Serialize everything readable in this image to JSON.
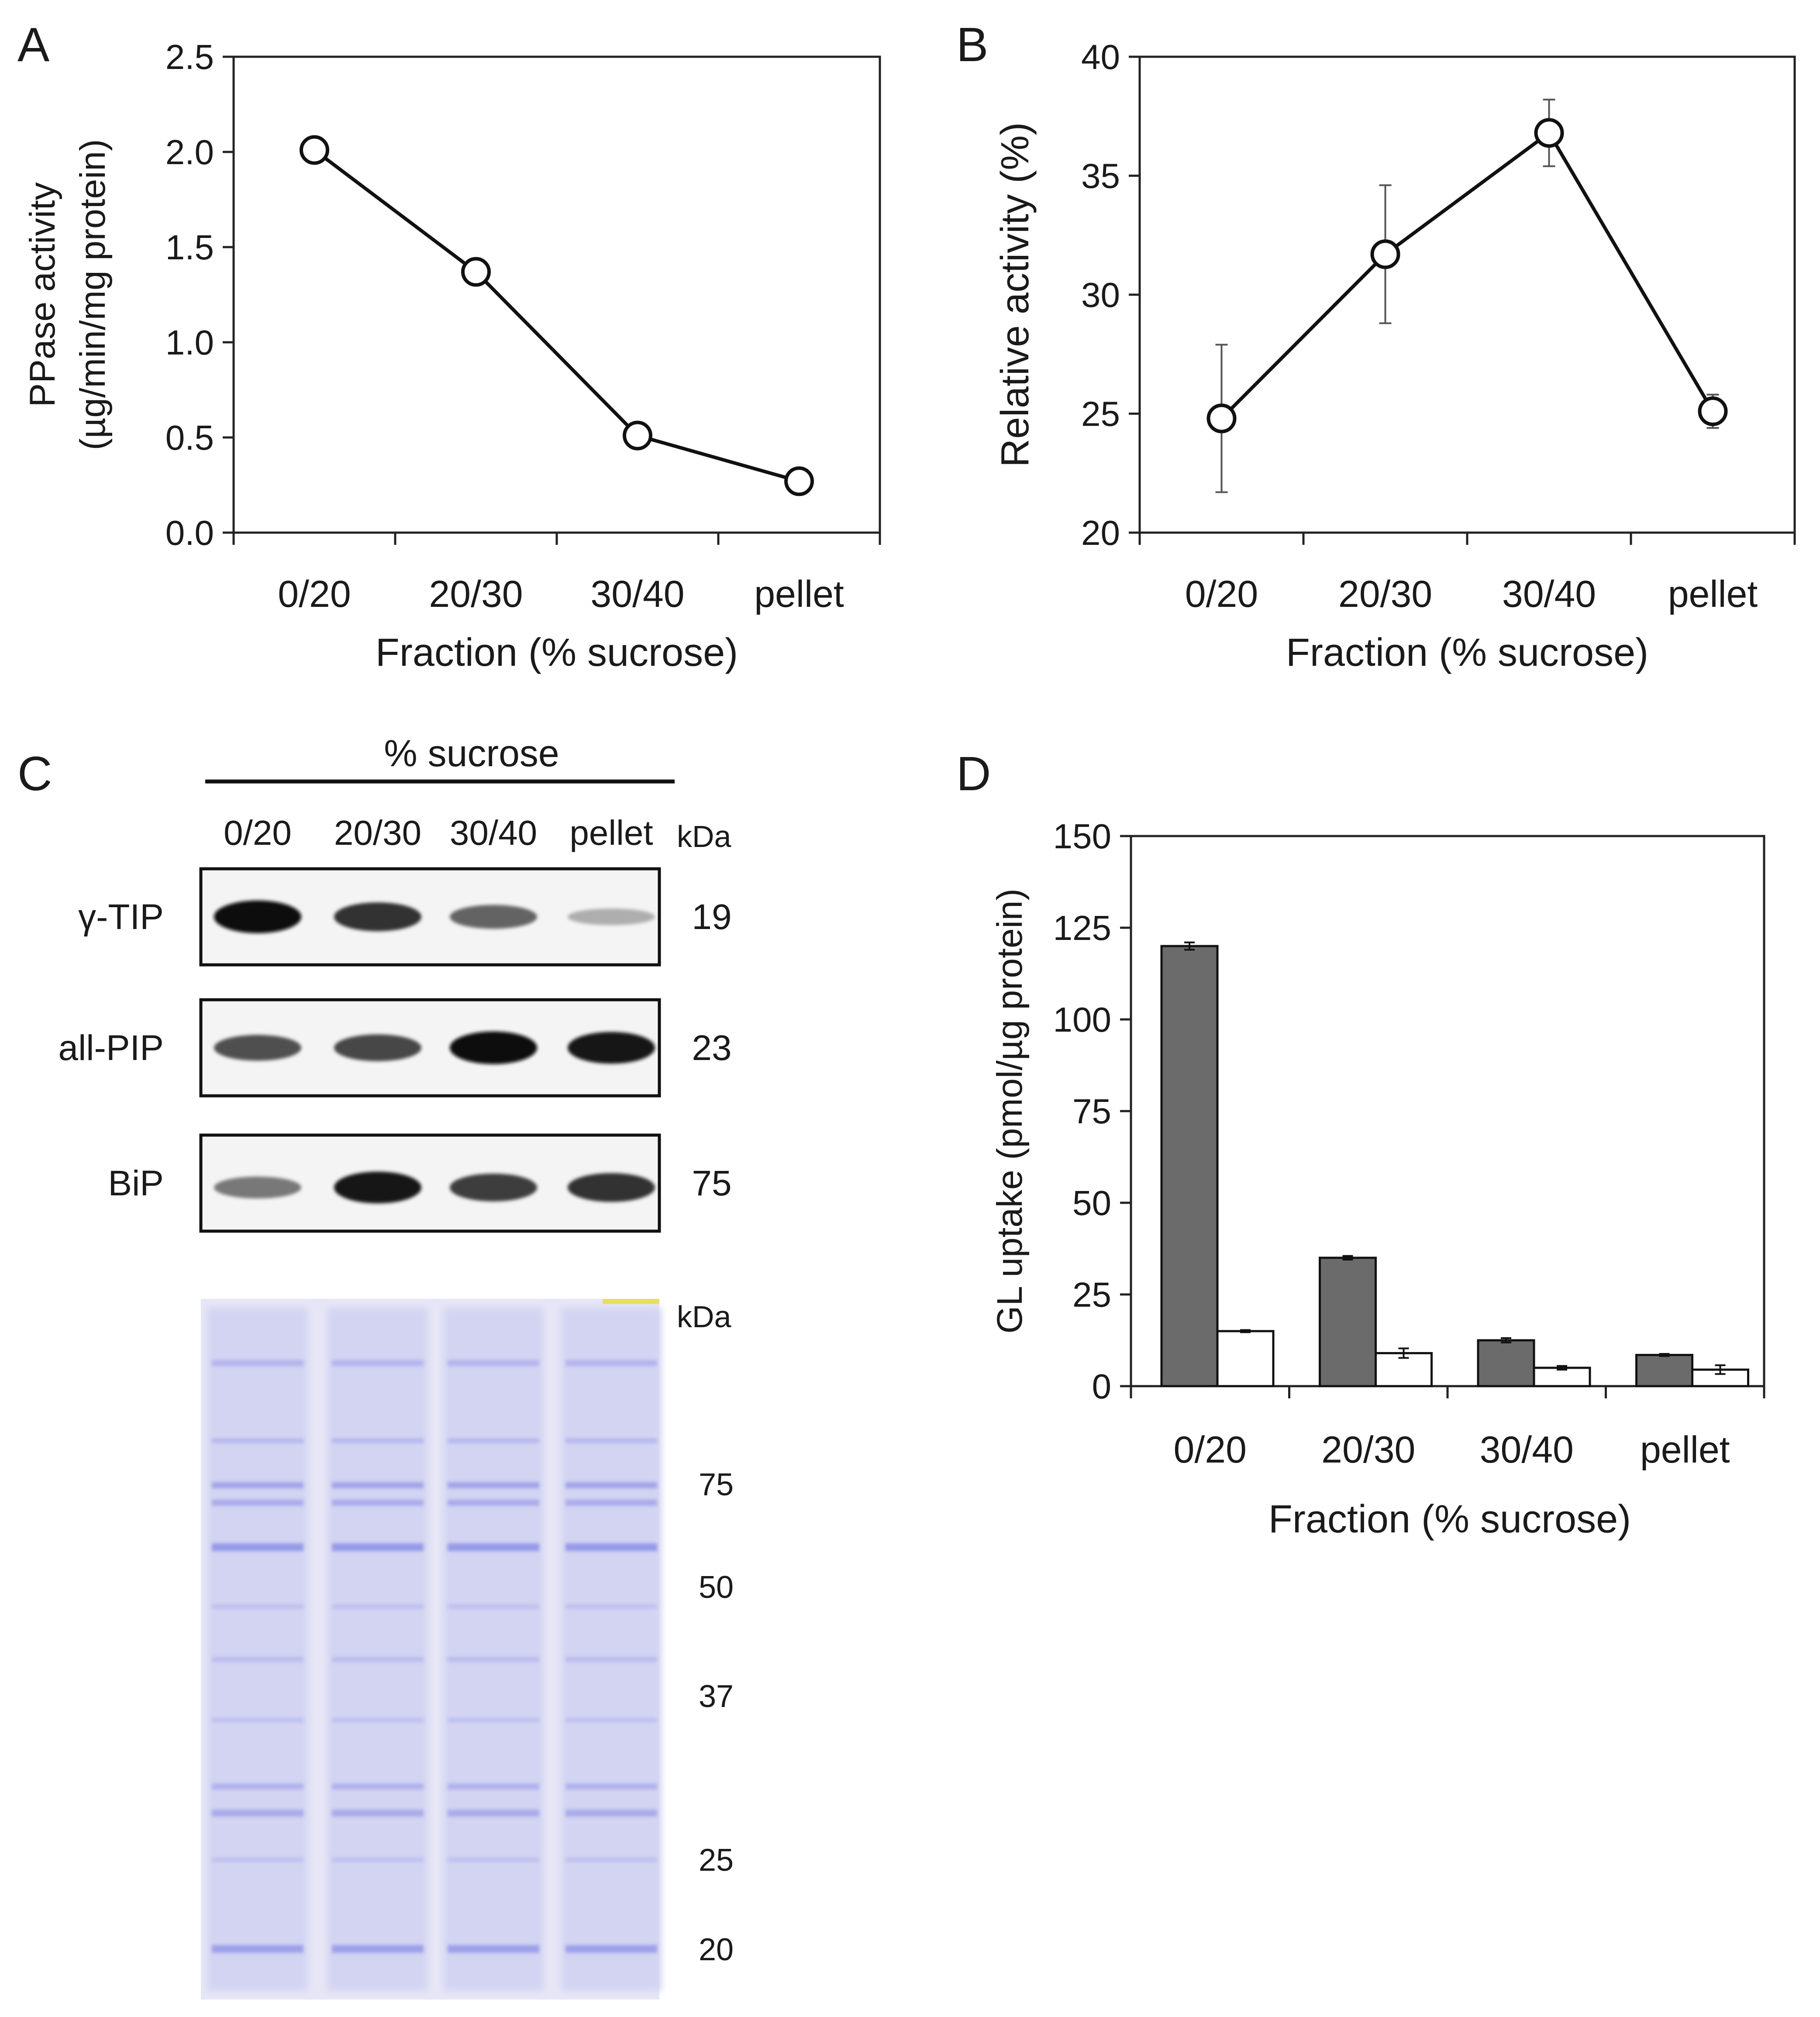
{
  "chart_data": [
    {
      "panel": "A",
      "type": "line",
      "ylabel_lines": [
        "PPase activity",
        "(µg/min/mg protein)"
      ],
      "xlabel": "Fraction (% sucrose)",
      "categories": [
        "0/20",
        "20/30",
        "30/40",
        "pellet"
      ],
      "values": [
        2.01,
        1.37,
        0.51,
        0.27
      ],
      "ylim": [
        0,
        2.5
      ],
      "yticks": [
        "0.0",
        "0.5",
        "1.0",
        "1.5",
        "2.0",
        "2.5"
      ],
      "grid": false
    },
    {
      "panel": "B",
      "type": "line",
      "ylabel": "Relative activity (%)",
      "xlabel": "Fraction (% sucrose)",
      "categories": [
        "0/20",
        "20/30",
        "30/40",
        "pellet"
      ],
      "values": [
        24.8,
        31.7,
        36.8,
        25.1
      ],
      "errors": [
        3.1,
        2.9,
        1.4,
        0.7
      ],
      "ylim": [
        20,
        40
      ],
      "yticks": [
        "20",
        "25",
        "30",
        "35",
        "40"
      ],
      "grid": false
    },
    {
      "panel": "D",
      "type": "bar",
      "ylabel": "GL uptake (pmol/µg protein)",
      "xlabel": "Fraction (% sucrose)",
      "categories": [
        "0/20",
        "20/30",
        "30/40",
        "pellet"
      ],
      "series": [
        {
          "name": "filled",
          "color": "#6b6b6b",
          "values": [
            120,
            35,
            12.5,
            8.5
          ],
          "errors": [
            1.0,
            0.5,
            0.6,
            0.3
          ]
        },
        {
          "name": "open",
          "color": "#ffffff",
          "values": [
            15,
            9,
            5,
            4.5
          ],
          "errors": [
            0.3,
            1.3,
            0.5,
            1.2
          ]
        }
      ],
      "ylim": [
        0,
        150
      ],
      "yticks": [
        "0",
        "25",
        "50",
        "75",
        "100",
        "125",
        "150"
      ],
      "grid": false
    }
  ],
  "panel_c": {
    "letter": "C",
    "header": "% sucrose",
    "lanes": [
      "0/20",
      "20/30",
      "30/40",
      "pellet"
    ],
    "kda_label": "kDa",
    "blots": [
      {
        "name": "γ-TIP",
        "kda": "19",
        "intensity": [
          1.0,
          0.8,
          0.55,
          0.18
        ]
      },
      {
        "name": "all-PIP",
        "kda": "23",
        "intensity": [
          0.65,
          0.7,
          1.0,
          0.95
        ]
      },
      {
        "name": "BiP",
        "kda": "75",
        "intensity": [
          0.45,
          0.95,
          0.75,
          0.8
        ]
      }
    ],
    "gel_kda_label": "kDa",
    "gel_markers": [
      "75",
      "50",
      "37",
      "25",
      "20"
    ],
    "gel_color": "#8c8fe6"
  }
}
